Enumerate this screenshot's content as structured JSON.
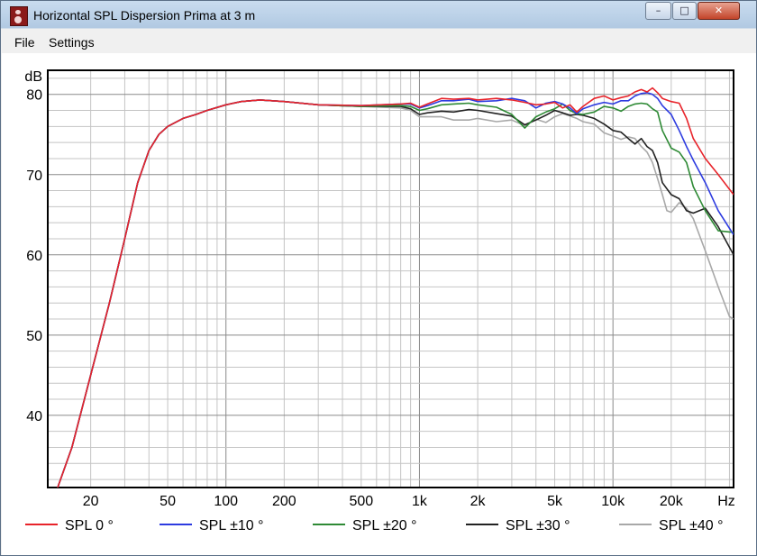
{
  "window": {
    "title": "Horizontal SPL Dispersion Prima at 3 m",
    "minimize_icon": "minimize-icon",
    "maximize_icon": "maximize-icon",
    "close_icon": "close-icon"
  },
  "menu": {
    "items": [
      "File",
      "Settings"
    ]
  },
  "chart_data": {
    "type": "line",
    "title": "",
    "xlabel": "Hz",
    "ylabel": "dB",
    "xscale": "log",
    "xlim": [
      12,
      42000
    ],
    "ylim": [
      31,
      83
    ],
    "grid": true,
    "legend_position": "bottom",
    "x_ticks": [
      20,
      50,
      100,
      200,
      500,
      1000,
      2000,
      5000,
      10000,
      20000
    ],
    "x_tick_labels": [
      "20",
      "50",
      "100",
      "200",
      "500",
      "1k",
      "2k",
      "5k",
      "10k",
      "20k"
    ],
    "x_unit_label": "Hz",
    "y_ticks": [
      40,
      50,
      60,
      70,
      80
    ],
    "y_tick_labels": [
      "40",
      "50",
      "60",
      "70",
      "80"
    ],
    "y_unit_label": "dB",
    "series": [
      {
        "name": "SPL 0 °",
        "color": "#e8232a",
        "points": [
          [
            13.5,
            31
          ],
          [
            16,
            36
          ],
          [
            20,
            45
          ],
          [
            25,
            54
          ],
          [
            30,
            62
          ],
          [
            35,
            69
          ],
          [
            40,
            73
          ],
          [
            45,
            75
          ],
          [
            50,
            76
          ],
          [
            60,
            77
          ],
          [
            70,
            77.5
          ],
          [
            80,
            78
          ],
          [
            100,
            78.7
          ],
          [
            120,
            79.1
          ],
          [
            150,
            79.3
          ],
          [
            200,
            79.1
          ],
          [
            300,
            78.7
          ],
          [
            500,
            78.6
          ],
          [
            800,
            78.8
          ],
          [
            900,
            78.9
          ],
          [
            1000,
            78.4
          ],
          [
            1100,
            78.8
          ],
          [
            1300,
            79.5
          ],
          [
            1500,
            79.4
          ],
          [
            1800,
            79.5
          ],
          [
            2000,
            79.3
          ],
          [
            2500,
            79.5
          ],
          [
            3000,
            79.3
          ],
          [
            3500,
            79
          ],
          [
            4000,
            78.7
          ],
          [
            4500,
            78.8
          ],
          [
            5000,
            79
          ],
          [
            5500,
            78.3
          ],
          [
            6000,
            78.7
          ],
          [
            6500,
            77.8
          ],
          [
            7000,
            78.5
          ],
          [
            8000,
            79.5
          ],
          [
            9000,
            79.8
          ],
          [
            10000,
            79.3
          ],
          [
            11000,
            79.6
          ],
          [
            12000,
            79.8
          ],
          [
            13000,
            80.3
          ],
          [
            14000,
            80.6
          ],
          [
            15000,
            80.3
          ],
          [
            16000,
            80.8
          ],
          [
            17000,
            80.2
          ],
          [
            18000,
            79.5
          ],
          [
            20000,
            79.1
          ],
          [
            22000,
            78.9
          ],
          [
            24000,
            77
          ],
          [
            26000,
            74.5
          ],
          [
            30000,
            72
          ],
          [
            35000,
            70
          ],
          [
            42000,
            67.5
          ]
        ]
      },
      {
        "name": "SPL ±10 °",
        "color": "#2d3be0",
        "points": [
          [
            13.5,
            31
          ],
          [
            16,
            36
          ],
          [
            20,
            45
          ],
          [
            25,
            54
          ],
          [
            30,
            62
          ],
          [
            35,
            69
          ],
          [
            40,
            73
          ],
          [
            45,
            75
          ],
          [
            50,
            76
          ],
          [
            60,
            77
          ],
          [
            70,
            77.5
          ],
          [
            80,
            78
          ],
          [
            100,
            78.7
          ],
          [
            120,
            79.1
          ],
          [
            150,
            79.3
          ],
          [
            200,
            79.1
          ],
          [
            300,
            78.7
          ],
          [
            500,
            78.6
          ],
          [
            800,
            78.8
          ],
          [
            900,
            78.8
          ],
          [
            1000,
            78.3
          ],
          [
            1100,
            78.6
          ],
          [
            1300,
            79.2
          ],
          [
            1500,
            79.2
          ],
          [
            1800,
            79.4
          ],
          [
            2000,
            79.1
          ],
          [
            2500,
            79.2
          ],
          [
            3000,
            79.5
          ],
          [
            3500,
            79.2
          ],
          [
            4000,
            78.3
          ],
          [
            4500,
            78.9
          ],
          [
            5000,
            79.1
          ],
          [
            5500,
            78.8
          ],
          [
            6000,
            78.3
          ],
          [
            6500,
            77.6
          ],
          [
            7000,
            78.2
          ],
          [
            8000,
            78.7
          ],
          [
            9000,
            79
          ],
          [
            10000,
            78.8
          ],
          [
            11000,
            79.2
          ],
          [
            12000,
            79.2
          ],
          [
            13000,
            79.8
          ],
          [
            14000,
            80.1
          ],
          [
            15000,
            80.2
          ],
          [
            16000,
            80
          ],
          [
            17000,
            79.5
          ],
          [
            18000,
            78.6
          ],
          [
            20000,
            77.5
          ],
          [
            22000,
            75.5
          ],
          [
            24000,
            73.5
          ],
          [
            26000,
            71.8
          ],
          [
            30000,
            69
          ],
          [
            35000,
            65.5
          ],
          [
            42000,
            62.5
          ]
        ]
      },
      {
        "name": "SPL ±20 °",
        "color": "#2e8a35",
        "points": [
          [
            13.5,
            31
          ],
          [
            16,
            36
          ],
          [
            20,
            45
          ],
          [
            25,
            54
          ],
          [
            30,
            62
          ],
          [
            35,
            69
          ],
          [
            40,
            73
          ],
          [
            45,
            75
          ],
          [
            50,
            76
          ],
          [
            60,
            77
          ],
          [
            70,
            77.5
          ],
          [
            80,
            78
          ],
          [
            100,
            78.7
          ],
          [
            120,
            79.1
          ],
          [
            150,
            79.3
          ],
          [
            200,
            79.1
          ],
          [
            300,
            78.7
          ],
          [
            500,
            78.5
          ],
          [
            800,
            78.6
          ],
          [
            900,
            78.5
          ],
          [
            1000,
            78
          ],
          [
            1100,
            78.2
          ],
          [
            1300,
            78.7
          ],
          [
            1500,
            78.8
          ],
          [
            1800,
            78.9
          ],
          [
            2000,
            78.7
          ],
          [
            2500,
            78.4
          ],
          [
            3000,
            77.5
          ],
          [
            3500,
            75.8
          ],
          [
            4000,
            77.2
          ],
          [
            4500,
            77.8
          ],
          [
            5000,
            78.2
          ],
          [
            5500,
            78.8
          ],
          [
            6000,
            78
          ],
          [
            6500,
            77.6
          ],
          [
            7000,
            77.5
          ],
          [
            8000,
            77.8
          ],
          [
            9000,
            78.5
          ],
          [
            10000,
            78.3
          ],
          [
            11000,
            77.9
          ],
          [
            12000,
            78.5
          ],
          [
            13000,
            78.8
          ],
          [
            14000,
            78.9
          ],
          [
            15000,
            78.8
          ],
          [
            16000,
            78.2
          ],
          [
            17000,
            77.8
          ],
          [
            18000,
            75.5
          ],
          [
            20000,
            73.3
          ],
          [
            22000,
            72.8
          ],
          [
            24000,
            71.5
          ],
          [
            26000,
            68.5
          ],
          [
            30000,
            65.5
          ],
          [
            35000,
            63
          ],
          [
            42000,
            62.8
          ]
        ]
      },
      {
        "name": "SPL ±30 °",
        "color": "#222222",
        "points": [
          [
            13.5,
            31
          ],
          [
            16,
            36
          ],
          [
            20,
            45
          ],
          [
            25,
            54
          ],
          [
            30,
            62
          ],
          [
            35,
            69
          ],
          [
            40,
            73
          ],
          [
            45,
            75
          ],
          [
            50,
            76
          ],
          [
            60,
            77
          ],
          [
            70,
            77.5
          ],
          [
            80,
            78
          ],
          [
            100,
            78.7
          ],
          [
            120,
            79.1
          ],
          [
            150,
            79.3
          ],
          [
            200,
            79.1
          ],
          [
            300,
            78.7
          ],
          [
            500,
            78.5
          ],
          [
            800,
            78.5
          ],
          [
            900,
            78.2
          ],
          [
            1000,
            77.5
          ],
          [
            1100,
            77.7
          ],
          [
            1300,
            77.9
          ],
          [
            1500,
            77.8
          ],
          [
            1800,
            78.1
          ],
          [
            2000,
            78
          ],
          [
            2500,
            77.6
          ],
          [
            3000,
            77.3
          ],
          [
            3500,
            76.2
          ],
          [
            4000,
            76.8
          ],
          [
            4500,
            77.4
          ],
          [
            5000,
            78
          ],
          [
            5500,
            77.7
          ],
          [
            6000,
            77.4
          ],
          [
            6500,
            77.5
          ],
          [
            7000,
            77.4
          ],
          [
            8000,
            77
          ],
          [
            9000,
            76.3
          ],
          [
            10000,
            75.5
          ],
          [
            11000,
            75.3
          ],
          [
            12000,
            74.5
          ],
          [
            13000,
            73.8
          ],
          [
            14000,
            74.5
          ],
          [
            15000,
            73.5
          ],
          [
            16000,
            73
          ],
          [
            17000,
            71.5
          ],
          [
            18000,
            69
          ],
          [
            20000,
            67.5
          ],
          [
            22000,
            67
          ],
          [
            24000,
            65.5
          ],
          [
            26000,
            65.2
          ],
          [
            30000,
            65.8
          ],
          [
            35000,
            63.5
          ],
          [
            42000,
            60
          ]
        ]
      },
      {
        "name": "SPL ±40 °",
        "color": "#a8a8a8",
        "points": [
          [
            13.5,
            31
          ],
          [
            16,
            36
          ],
          [
            20,
            45
          ],
          [
            25,
            54
          ],
          [
            30,
            62
          ],
          [
            35,
            69
          ],
          [
            40,
            73
          ],
          [
            45,
            75
          ],
          [
            50,
            76
          ],
          [
            60,
            77
          ],
          [
            70,
            77.5
          ],
          [
            80,
            78
          ],
          [
            100,
            78.7
          ],
          [
            120,
            79.1
          ],
          [
            150,
            79.3
          ],
          [
            200,
            79.1
          ],
          [
            300,
            78.7
          ],
          [
            500,
            78.5
          ],
          [
            800,
            78.3
          ],
          [
            900,
            78
          ],
          [
            1000,
            77.2
          ],
          [
            1100,
            77.2
          ],
          [
            1300,
            77.2
          ],
          [
            1500,
            76.8
          ],
          [
            1800,
            76.8
          ],
          [
            2000,
            77
          ],
          [
            2500,
            76.6
          ],
          [
            3000,
            76.8
          ],
          [
            3500,
            76.1
          ],
          [
            4000,
            76.9
          ],
          [
            4500,
            76.5
          ],
          [
            5000,
            77.2
          ],
          [
            5500,
            77.6
          ],
          [
            6000,
            77.3
          ],
          [
            6500,
            77
          ],
          [
            7000,
            76.6
          ],
          [
            8000,
            76.3
          ],
          [
            9000,
            75.2
          ],
          [
            10000,
            74.8
          ],
          [
            11000,
            74.4
          ],
          [
            12000,
            74.7
          ],
          [
            13000,
            74.5
          ],
          [
            14000,
            73.5
          ],
          [
            15000,
            72.8
          ],
          [
            16000,
            71.5
          ],
          [
            17000,
            69.5
          ],
          [
            18000,
            67.5
          ],
          [
            19000,
            65.5
          ],
          [
            20000,
            65.3
          ],
          [
            22000,
            66.5
          ],
          [
            24000,
            65.8
          ],
          [
            26000,
            64.5
          ],
          [
            30000,
            60.5
          ],
          [
            35000,
            56
          ],
          [
            40000,
            52.3
          ],
          [
            42000,
            52
          ]
        ]
      }
    ]
  }
}
